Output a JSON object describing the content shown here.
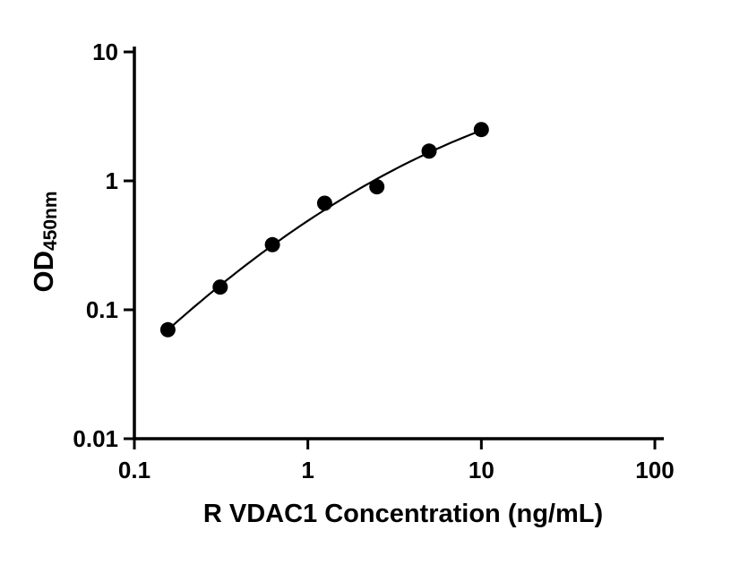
{
  "figure": {
    "background": "#ffffff",
    "foreground": "#000000"
  },
  "chart_data": {
    "type": "scatter",
    "x_scale": "log",
    "y_scale": "log",
    "x": [
      0.156,
      0.3125,
      0.625,
      1.25,
      2.5,
      5,
      10
    ],
    "y": [
      0.07,
      0.15,
      0.32,
      0.67,
      0.9,
      1.7,
      2.5
    ],
    "fit_curve": true,
    "title": "",
    "xlabel": "R VDAC1 Concentration (ng/mL)",
    "ylabel": "OD450nm",
    "ylabel_main": "OD",
    "ylabel_sub": "450nm",
    "xlim": [
      0.1,
      100
    ],
    "ylim": [
      0.01,
      10
    ],
    "x_ticks": [
      0.1,
      1,
      10,
      100
    ],
    "x_tick_labels": [
      "0.1",
      "1",
      "10",
      "100"
    ],
    "y_ticks": [
      0.01,
      0.1,
      1,
      10
    ],
    "y_tick_labels": [
      "0.01",
      "0.1",
      "1",
      "10"
    ],
    "grid": false,
    "legend": "none",
    "marker_color": "#000000",
    "line_color": "#000000"
  }
}
